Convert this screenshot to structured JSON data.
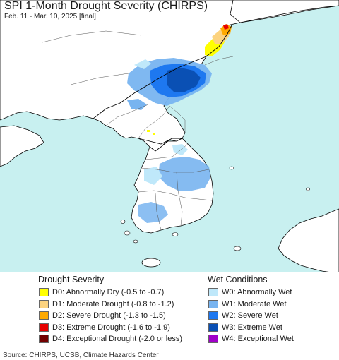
{
  "header": {
    "title": "SPI 1-Month Drought Severity (CHIRPS)",
    "subtitle": "Feb. 11 - Mar. 10, 2025 [final]"
  },
  "legend": {
    "drought": {
      "heading": "Drought Severity",
      "items": [
        {
          "label": "D0: Abnormally Dry (-0.5 to -0.7)",
          "color": "#ffff00"
        },
        {
          "label": "D1: Moderate Drought (-0.8 to -1.2)",
          "color": "#fcd37f"
        },
        {
          "label": "D2: Severe Drought (-1.3 to -1.5)",
          "color": "#ffaa00"
        },
        {
          "label": "D3: Extreme Drought (-1.6 to -1.9)",
          "color": "#e60000"
        },
        {
          "label": "D4: Exceptional Drought (-2.0 or less)",
          "color": "#730000"
        }
      ]
    },
    "wet": {
      "heading": "Wet Conditions",
      "items": [
        {
          "label": "W0: Abnormally Wet",
          "color": "#bfe8fa"
        },
        {
          "label": "W1: Moderate Wet",
          "color": "#78b4f0"
        },
        {
          "label": "W2: Severe Wet",
          "color": "#1e78f0"
        },
        {
          "label": "W3: Extreme Wet",
          "color": "#0a50b4"
        },
        {
          "label": "W4: Exceptional Wet",
          "color": "#a000c8"
        }
      ]
    }
  },
  "footer": {
    "source": "Source: CHIRPS, UCSB, Climate Hazards Center"
  },
  "map": {
    "ocean_color": "#c8f0f0",
    "land_color": "#ffffff",
    "border_color": "#000000",
    "region": "Korean Peninsula"
  }
}
